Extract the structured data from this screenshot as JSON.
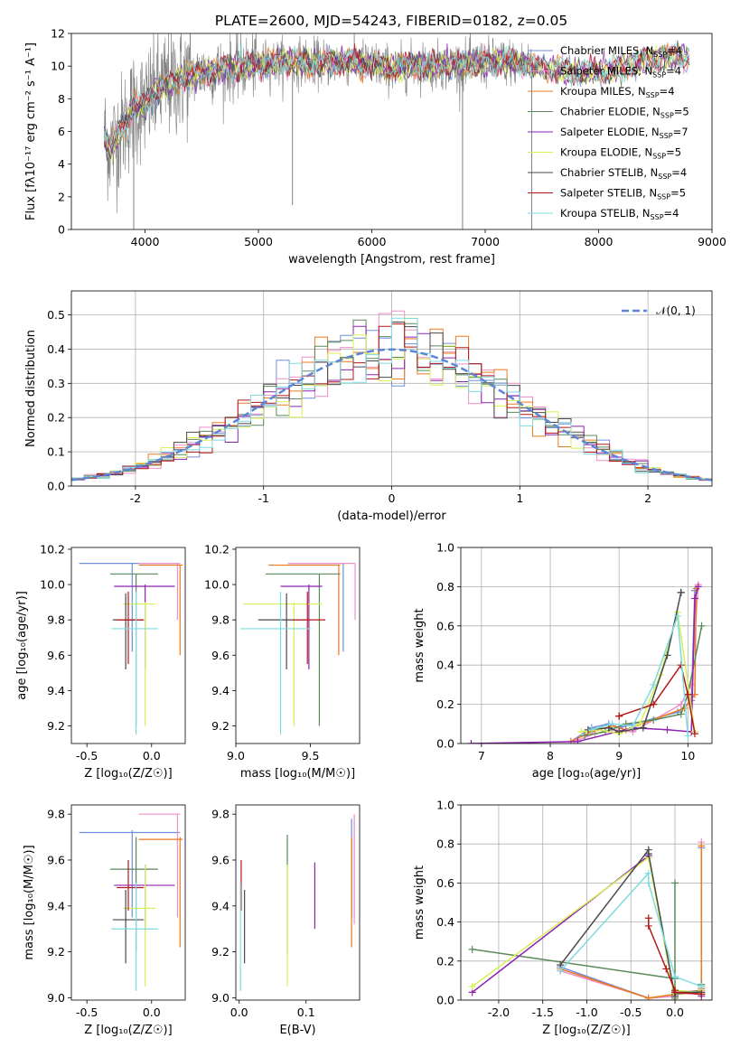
{
  "title": "PLATE=2600, MJD=54243, FIBERID=0182, z=0.05",
  "colors": {
    "Chabrier MILES": "#6f8fde",
    "Salpeter MILES": "#ee8fc8",
    "Kroupa MILES": "#ee7a1e",
    "Chabrier ELODIE": "#5a8a5a",
    "Salpeter ELODIE": "#8e23b2",
    "Kroupa ELODIE": "#d8ef55",
    "Chabrier STELIB": "#4a4a4a",
    "Salpeter STELIB": "#b31818",
    "Kroupa STELIB": "#7fdbe0",
    "data": "#808080"
  },
  "chart_data": [
    {
      "type": "line",
      "title": "PLATE=2600, MJD=54243, FIBERID=0182, z=0.05",
      "xlabel": "wavelength [Angstrom, rest frame]",
      "ylabel": "Flux [fλ10⁻¹⁷ erg cm⁻² s⁻¹ A⁻¹]",
      "xlim": [
        3350,
        9000
      ],
      "ylim": [
        0,
        12
      ],
      "xticks": [
        "4000",
        "5000",
        "6000",
        "7000",
        "8000",
        "9000"
      ],
      "yticks": [
        "0",
        "2",
        "4",
        "6",
        "8",
        "10",
        "12"
      ],
      "legend_position": "right",
      "legend": [
        {
          "name": "Chabrier MILES",
          "nssp": "4"
        },
        {
          "name": "Salpeter MILES",
          "nssp": "4"
        },
        {
          "name": "Kroupa MILES",
          "nssp": "4"
        },
        {
          "name": "Chabrier ELODIE",
          "nssp": "5"
        },
        {
          "name": "Salpeter ELODIE",
          "nssp": "7"
        },
        {
          "name": "Kroupa ELODIE",
          "nssp": "5"
        },
        {
          "name": "Chabrier STELIB",
          "nssp": "4"
        },
        {
          "name": "Salpeter STELIB",
          "nssp": "5"
        },
        {
          "name": "Kroupa STELIB",
          "nssp": "4"
        }
      ],
      "continuum": {
        "x": [
          3650,
          3700,
          3800,
          3900,
          4000,
          4100,
          4200,
          4300,
          4500,
          4700,
          4900,
          5100,
          5300,
          5500,
          5800,
          6000,
          6200,
          6400,
          6600,
          6800,
          7000,
          7200,
          7400
        ],
        "y": [
          5.6,
          5.0,
          6.2,
          7.5,
          7.6,
          8.5,
          8.9,
          9.2,
          9.6,
          9.8,
          10.0,
          10.2,
          10.3,
          10.2,
          10.3,
          10.1,
          9.8,
          10.1,
          10.0,
          10.1,
          10.2,
          10.3,
          10.1
        ]
      },
      "model_extension": {
        "x": [
          7400,
          7600,
          7800,
          8000,
          8200,
          8400,
          8600,
          8800
        ],
        "y": [
          10.0,
          9.8,
          9.6,
          9.6,
          9.9,
          10.3,
          10.5,
          10.6
        ]
      },
      "outliers": [
        {
          "x": 3900,
          "y": 0.0
        },
        {
          "x": 5300,
          "y": 1.5
        },
        {
          "x": 6800,
          "y": 0.0
        },
        {
          "x": 7410,
          "y": 0.0
        }
      ]
    },
    {
      "type": "bar",
      "xlabel": "(data-model)/error",
      "ylabel": "Normed distribution",
      "xlim": [
        -2.5,
        2.5
      ],
      "ylim": [
        0,
        0.57
      ],
      "xticks": [
        "-2",
        "-1",
        "0",
        "1",
        "2"
      ],
      "yticks": [
        "0.0",
        "0.1",
        "0.2",
        "0.3",
        "0.4",
        "0.5"
      ],
      "grid": true,
      "legend_position": "top-right",
      "reference_curve": "𝒩(0, 1)",
      "bin_width": 0.1
    },
    {
      "type": "scatter",
      "xlabel": "Z [log₁₀(Z/Z☉)]",
      "ylabel": "age  [log₁₀(age/yr)]",
      "xlim": [
        -0.62,
        0.26
      ],
      "ylim": [
        9.1,
        10.21
      ],
      "xticks": [
        "-0.5",
        "0.0"
      ],
      "yticks": [
        "9.2",
        "9.4",
        "9.6",
        "9.8",
        "10.0",
        "10.2"
      ]
    },
    {
      "type": "scatter",
      "xlabel": "mass [log₁₀(M/M☉)]",
      "ylabel": "",
      "xlim": [
        9.0,
        9.83
      ],
      "ylim": [
        9.1,
        10.21
      ],
      "xticks": [
        "9.0",
        "9.5"
      ],
      "yticks": [
        "9.2",
        "9.4",
        "9.6",
        "9.8",
        "10.0",
        "10.2"
      ]
    },
    {
      "type": "line",
      "xlabel": "age  [log₁₀(age/yr)]",
      "ylabel": "mass weight",
      "xlim": [
        6.7,
        10.35
      ],
      "ylim": [
        0,
        1.0
      ],
      "xticks": [
        "7",
        "8",
        "9",
        "10"
      ],
      "yticks": [
        "0.0",
        "0.2",
        "0.4",
        "0.6",
        "0.8",
        "1.0"
      ],
      "grid": true
    },
    {
      "type": "scatter",
      "xlabel": "Z [log₁₀(Z/Z☉)]",
      "ylabel": "mass [log₁₀(M/M☉)]",
      "xlim": [
        -0.62,
        0.26
      ],
      "ylim": [
        8.99,
        9.84
      ],
      "xticks": [
        "-0.5",
        "0.0"
      ],
      "yticks": [
        "9.0",
        "9.2",
        "9.4",
        "9.6",
        "9.8"
      ]
    },
    {
      "type": "scatter",
      "xlabel": "E(B-V)",
      "ylabel": "",
      "xlim": [
        -0.005,
        0.18
      ],
      "ylim": [
        8.99,
        9.84
      ],
      "xticks": [
        "0.0",
        "0.1"
      ],
      "yticks": [
        "9.0",
        "9.2",
        "9.4",
        "9.6",
        "9.8"
      ]
    },
    {
      "type": "line",
      "xlabel": "Z [log₁₀(Z/Z☉)]",
      "ylabel": "mass weight",
      "xlim": [
        -2.43,
        0.42
      ],
      "ylim": [
        0,
        1.0
      ],
      "xticks": [
        "-2.0",
        "-1.5",
        "-1.0",
        "-0.5",
        "0.0"
      ],
      "yticks": [
        "0.0",
        "0.2",
        "0.4",
        "0.6",
        "0.8",
        "1.0"
      ],
      "grid": true
    }
  ],
  "models": [
    {
      "name": "Chabrier MILES",
      "color": "#6f8fde",
      "Z": -0.15,
      "Zlo": -0.56,
      "Zhi": 0.22,
      "age": 10.12,
      "agelo": 9.62,
      "agehi": 10.12,
      "mass": 9.72,
      "masslo": 9.35,
      "masshi": 9.73,
      "ebv": 0.168,
      "ebvlo": 9.35,
      "ebvhi": 9.78,
      "sfh_age": [
        8.3,
        8.6,
        8.85,
        9.0,
        9.85,
        10.05,
        10.1
      ],
      "sfh_w": [
        0.01,
        0.08,
        0.1,
        0.08,
        0.16,
        0.22,
        0.78
      ],
      "sfh_Z": [
        -1.3,
        -0.3,
        0.0,
        0.0,
        0.3,
        0.3,
        0.3
      ],
      "sfh_Zw": [
        0.17,
        0.01,
        0.02,
        0.03,
        0.05,
        0.06,
        0.78
      ]
    },
    {
      "name": "Salpeter MILES",
      "color": "#ee8fc8",
      "Z": 0.2,
      "Zlo": -0.1,
      "Zhi": 0.22,
      "age": 10.12,
      "agelo": 9.8,
      "agehi": 10.12,
      "mass": 9.8,
      "masslo": 9.35,
      "masshi": 9.8,
      "ebv": 0.172,
      "ebvlo": 9.32,
      "ebvhi": 9.8,
      "sfh_age": [
        8.35,
        8.65,
        8.9,
        9.2,
        9.9,
        10.05,
        10.15
      ],
      "sfh_w": [
        0.01,
        0.05,
        0.07,
        0.06,
        0.2,
        0.3,
        0.81
      ],
      "sfh_Z": [
        -1.3,
        -0.3,
        0.0,
        0.0,
        0.3,
        0.3,
        0.3
      ],
      "sfh_Zw": [
        0.15,
        0.01,
        0.02,
        0.04,
        0.05,
        0.07,
        0.81
      ]
    },
    {
      "name": "Kroupa MILES",
      "color": "#ee7a1e",
      "Z": 0.22,
      "Zlo": -0.1,
      "Zhi": 0.24,
      "age": 10.11,
      "agelo": 9.6,
      "agehi": 10.11,
      "mass": 9.69,
      "masslo": 9.22,
      "masshi": 9.7,
      "ebv": 0.168,
      "ebvlo": 9.22,
      "ebvhi": 9.7,
      "sfh_age": [
        8.3,
        8.6,
        8.9,
        9.1,
        9.95,
        10.1,
        10.12
      ],
      "sfh_w": [
        0.01,
        0.06,
        0.09,
        0.07,
        0.18,
        0.25,
        0.79
      ],
      "sfh_Z": [
        -1.3,
        -0.3,
        0.0,
        0.0,
        0.3,
        0.3,
        0.3
      ],
      "sfh_Zw": [
        0.16,
        0.01,
        0.03,
        0.03,
        0.04,
        0.06,
        0.79
      ]
    },
    {
      "name": "Chabrier ELODIE",
      "color": "#5a8a5a",
      "Z": -0.12,
      "Zlo": -0.32,
      "Zhi": 0.05,
      "age": 10.06,
      "agelo": 9.2,
      "agehi": 10.06,
      "mass": 9.56,
      "masslo": 9.2,
      "masshi": 9.7,
      "ebv": 0.072,
      "ebvlo": 9.19,
      "ebvhi": 9.71,
      "sfh_age": [
        8.5,
        8.8,
        9.1,
        9.5,
        9.9,
        10.0,
        10.2
      ],
      "sfh_w": [
        0.04,
        0.06,
        0.1,
        0.12,
        0.15,
        0.25,
        0.6
      ],
      "sfh_Z": [
        -2.3,
        0.0,
        -0.0,
        0.0,
        0.0,
        0.3,
        0.3
      ],
      "sfh_Zw": [
        0.26,
        0.11,
        0.6,
        0.01,
        0.03,
        0.05,
        0.08
      ]
    },
    {
      "name": "Salpeter ELODIE",
      "color": "#8e23b2",
      "Z": -0.05,
      "Zlo": -0.29,
      "Zhi": 0.18,
      "age": 9.99,
      "agelo": 9.52,
      "agehi": 10.0,
      "mass": 9.49,
      "masslo": 9.3,
      "masshi": 9.58,
      "ebv": 0.113,
      "ebvlo": 9.3,
      "ebvhi": 9.59,
      "sfh_age": [
        6.85,
        8.4,
        9.2,
        9.7,
        10.05,
        10.1,
        10.15
      ],
      "sfh_w": [
        0.0,
        0.01,
        0.08,
        0.07,
        0.06,
        0.74,
        0.8
      ],
      "sfh_Z": [
        -2.3,
        -0.3,
        0.0,
        0.0,
        0.3,
        0.3,
        0.3
      ],
      "sfh_Zw": [
        0.04,
        0.74,
        0.0,
        0.04,
        0.03,
        0.05,
        0.02
      ]
    },
    {
      "name": "Kroupa ELODIE",
      "color": "#d8ef55",
      "Z": -0.05,
      "Zlo": -0.22,
      "Zhi": 0.03,
      "age": 9.89,
      "agelo": 9.2,
      "agehi": 9.9,
      "mass": 9.39,
      "masslo": 9.05,
      "masshi": 9.58,
      "ebv": 0.072,
      "ebvlo": 9.05,
      "ebvhi": 9.58,
      "sfh_age": [
        8.45,
        8.7,
        9.0,
        9.3,
        9.6,
        9.85,
        10.1
      ],
      "sfh_w": [
        0.06,
        0.07,
        0.05,
        0.1,
        0.35,
        0.67,
        0.06
      ],
      "sfh_Z": [
        -2.3,
        -0.3,
        0.0,
        0.0,
        0.3,
        0.3,
        0.3
      ],
      "sfh_Zw": [
        0.07,
        0.73,
        0.0,
        0.05,
        0.04,
        0.03,
        0.05
      ]
    },
    {
      "name": "Chabrier STELIB",
      "color": "#4a4a4a",
      "Z": -0.2,
      "Zlo": -0.3,
      "Zhi": -0.06,
      "age": 9.8,
      "agelo": 9.52,
      "agehi": 9.95,
      "mass": 9.34,
      "masslo": 9.15,
      "masshi": 9.47,
      "ebv": 0.008,
      "ebvlo": 9.15,
      "ebvhi": 9.47,
      "sfh_age": [
        8.55,
        8.85,
        9.0,
        9.35,
        9.7,
        9.9,
        9.9
      ],
      "sfh_w": [
        0.07,
        0.08,
        0.06,
        0.08,
        0.45,
        0.77,
        0.77
      ],
      "sfh_Z": [
        -1.3,
        -0.3,
        -0.3,
        0.0,
        0.0,
        0.3,
        0.3
      ],
      "sfh_Zw": [
        0.18,
        0.77,
        0.75,
        0.02,
        0.04,
        0.04,
        0.03
      ]
    },
    {
      "name": "Salpeter STELIB",
      "color": "#b31818",
      "Z": -0.18,
      "Zlo": -0.27,
      "Zhi": -0.06,
      "age": 9.8,
      "agelo": 9.55,
      "agehi": 9.96,
      "mass": 9.48,
      "masslo": 9.38,
      "masshi": 9.6,
      "ebv": 0.003,
      "ebvlo": 9.38,
      "ebvhi": 9.6,
      "sfh_age": [
        9.0,
        9.0,
        9.5,
        9.9,
        10.0,
        10.1
      ],
      "sfh_w": [
        0.14,
        0.14,
        0.2,
        0.4,
        0.25,
        0.05
      ],
      "sfh_Z": [
        -0.3,
        -0.3,
        -0.1,
        0.0,
        0.0,
        0.3
      ],
      "sfh_Zw": [
        0.42,
        0.38,
        0.16,
        0.05,
        0.04,
        0.03
      ]
    },
    {
      "name": "Kroupa STELIB",
      "color": "#7fdbe0",
      "Z": -0.12,
      "Zlo": -0.31,
      "Zhi": 0.05,
      "age": 9.75,
      "agelo": 9.15,
      "agehi": 9.96,
      "mass": 9.3,
      "masslo": 9.03,
      "masshi": 9.5,
      "ebv": 0.002,
      "ebvlo": 9.03,
      "ebvhi": 9.5,
      "sfh_age": [
        8.6,
        8.9,
        9.2,
        9.5,
        9.85,
        10.0
      ],
      "sfh_w": [
        0.07,
        0.1,
        0.09,
        0.3,
        0.65,
        0.04
      ],
      "sfh_Z": [
        -1.3,
        -0.3,
        -0.3,
        0.0,
        0.3,
        0.3
      ],
      "sfh_Zw": [
        0.15,
        0.65,
        0.6,
        0.12,
        0.07,
        0.07
      ]
    }
  ]
}
